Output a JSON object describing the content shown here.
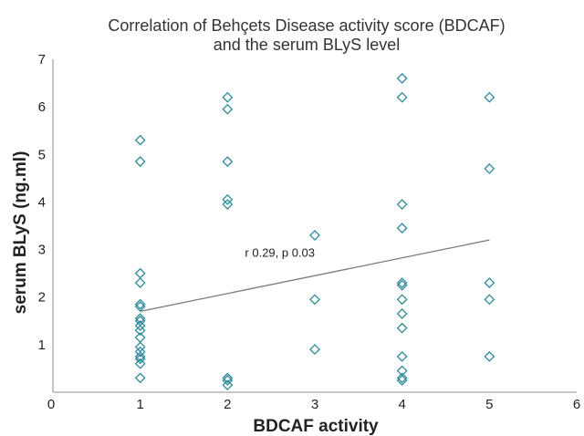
{
  "chart_data": {
    "type": "scatter",
    "title_line1": "Correlation of Behçets Disease activity score (BDCAF)",
    "title_line2": "and the serum BLyS level",
    "xlabel": "BDCAF activity",
    "ylabel": "serum BLyS (ng.ml)",
    "xlim": [
      0,
      6
    ],
    "ylim": [
      0,
      7
    ],
    "x_ticks": [
      "0",
      "1",
      "2",
      "3",
      "4",
      "5",
      "6"
    ],
    "y_ticks": [
      "0",
      "1",
      "2",
      "3",
      "4",
      "5",
      "6",
      "7"
    ],
    "grid": false,
    "legend": "none",
    "marker": "diamond-open",
    "marker_color": "#2e8b9a",
    "trendline_color": "#7a7a7a",
    "points": [
      {
        "x": 1,
        "y": 5.3
      },
      {
        "x": 1,
        "y": 4.85
      },
      {
        "x": 1,
        "y": 2.5
      },
      {
        "x": 1,
        "y": 2.3
      },
      {
        "x": 1,
        "y": 1.85
      },
      {
        "x": 1,
        "y": 1.8
      },
      {
        "x": 1,
        "y": 1.55
      },
      {
        "x": 1,
        "y": 1.5
      },
      {
        "x": 1,
        "y": 1.4
      },
      {
        "x": 1,
        "y": 1.3
      },
      {
        "x": 1,
        "y": 1.15
      },
      {
        "x": 1,
        "y": 0.95
      },
      {
        "x": 1,
        "y": 0.85
      },
      {
        "x": 1,
        "y": 0.75
      },
      {
        "x": 1,
        "y": 0.7
      },
      {
        "x": 1,
        "y": 0.6
      },
      {
        "x": 1,
        "y": 0.3
      },
      {
        "x": 2,
        "y": 6.2
      },
      {
        "x": 2,
        "y": 5.95
      },
      {
        "x": 2,
        "y": 4.85
      },
      {
        "x": 2,
        "y": 4.05
      },
      {
        "x": 2,
        "y": 3.95
      },
      {
        "x": 2,
        "y": 0.3
      },
      {
        "x": 2,
        "y": 0.25
      },
      {
        "x": 2,
        "y": 0.15
      },
      {
        "x": 3,
        "y": 3.3
      },
      {
        "x": 3,
        "y": 1.95
      },
      {
        "x": 3,
        "y": 0.9
      },
      {
        "x": 4,
        "y": 6.6
      },
      {
        "x": 4,
        "y": 6.2
      },
      {
        "x": 4,
        "y": 3.95
      },
      {
        "x": 4,
        "y": 3.45
      },
      {
        "x": 4,
        "y": 2.3
      },
      {
        "x": 4,
        "y": 2.25
      },
      {
        "x": 4,
        "y": 1.95
      },
      {
        "x": 4,
        "y": 1.65
      },
      {
        "x": 4,
        "y": 1.35
      },
      {
        "x": 4,
        "y": 0.75
      },
      {
        "x": 4,
        "y": 0.45
      },
      {
        "x": 4,
        "y": 0.3
      },
      {
        "x": 4,
        "y": 0.25
      },
      {
        "x": 5,
        "y": 6.2
      },
      {
        "x": 5,
        "y": 4.7
      },
      {
        "x": 5,
        "y": 2.3
      },
      {
        "x": 5,
        "y": 1.95
      },
      {
        "x": 5,
        "y": 0.75
      }
    ],
    "trendline": {
      "x": [
        1,
        5
      ],
      "y": [
        1.7,
        3.2
      ]
    },
    "annotation": "r 0.29, p 0.03",
    "annotation_anchor": {
      "x": 2.6,
      "y": 2.85
    }
  }
}
